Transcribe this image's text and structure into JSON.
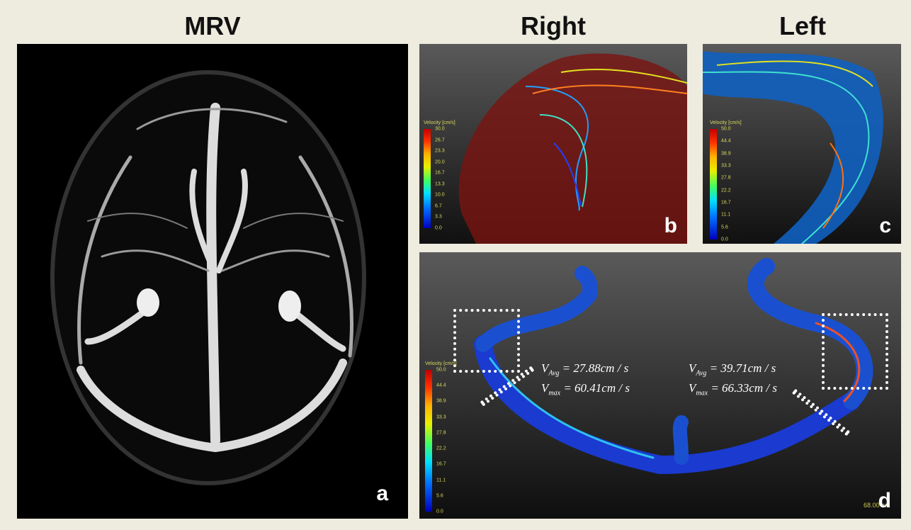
{
  "headers": [
    "MRV",
    "Right",
    "Left"
  ],
  "panels": [
    {
      "label": "a"
    },
    {
      "label": "b",
      "colorbar": {
        "title": "Velocity [cm/s]",
        "ticks": [
          "30.0",
          "26.7",
          "23.3",
          "20.0",
          "16.7",
          "13.3",
          "10.0",
          "6.7",
          "3.3",
          "0.0"
        ]
      }
    },
    {
      "label": "c",
      "colorbar": {
        "title": "Velocity [cm/s]",
        "ticks": [
          "50.0",
          "44.4",
          "38.9",
          "33.3",
          "27.8",
          "22.2",
          "16.7",
          "11.1",
          "5.6",
          "0.0"
        ]
      }
    },
    {
      "label": "d",
      "colorbar": {
        "title": "Velocity [cm/s]",
        "ticks": [
          "50.0",
          "44.4",
          "38.9",
          "33.3",
          "27.8",
          "22.2",
          "16.7",
          "11.1",
          "5.6",
          "0.0"
        ]
      },
      "timestamp": "68.00 ms",
      "annotations": [
        {
          "symbol": "V",
          "subscript": "Avg",
          "text": "= 27.88cm / s"
        },
        {
          "symbol": "V",
          "subscript": "max",
          "text": "= 60.41cm / s"
        },
        {
          "symbol": "V",
          "subscript": "Avg",
          "text": "= 39.71cm / s"
        },
        {
          "symbol": "V",
          "subscript": "max",
          "text": "= 66.33cm / s"
        }
      ]
    }
  ]
}
